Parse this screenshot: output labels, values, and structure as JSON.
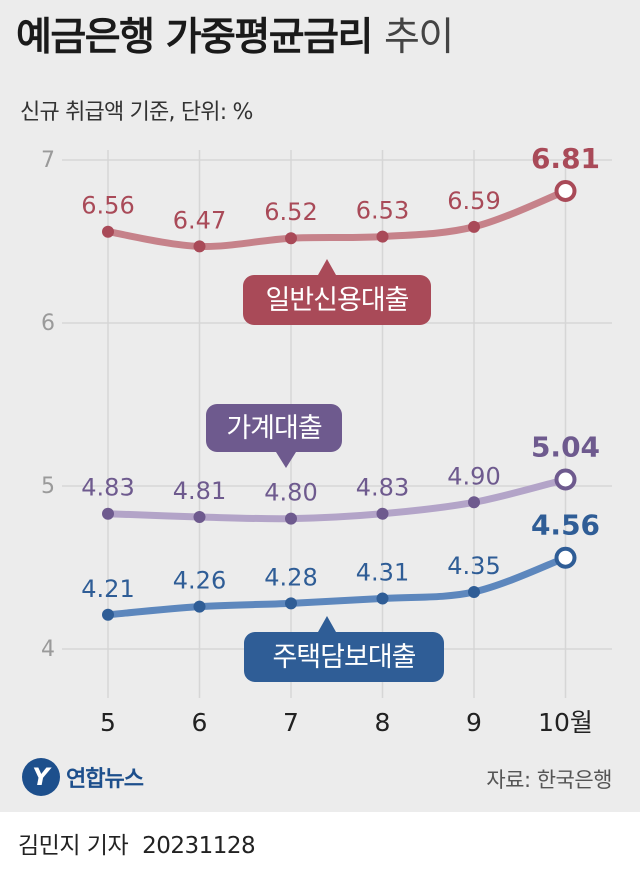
{
  "header": {
    "title": "예금은행 가중평균금리",
    "title_suffix": "추이",
    "subtitle": "신규 취급액 기준, 단위: %"
  },
  "chart_data": {
    "type": "line",
    "categories": [
      "5",
      "6",
      "7",
      "8",
      "9",
      "10월"
    ],
    "ylim": [
      3.8,
      7.2
    ],
    "yticks": [
      4,
      5,
      6,
      7
    ],
    "grid": true,
    "series": [
      {
        "name": "일반신용대출",
        "values": [
          6.56,
          6.47,
          6.52,
          6.53,
          6.59,
          6.81
        ],
        "labels": [
          "6.56",
          "6.47",
          "6.52",
          "6.53",
          "6.59",
          "6.81"
        ],
        "line_color": "#c6828a",
        "point_color": "#a94a58",
        "label_color": "#a94a58",
        "tag_color": "#a94a58"
      },
      {
        "name": "가계대출",
        "values": [
          4.83,
          4.81,
          4.8,
          4.83,
          4.9,
          5.04
        ],
        "labels": [
          "4.83",
          "4.81",
          "4.80",
          "4.83",
          "4.90",
          "5.04"
        ],
        "line_color": "#b3a4c8",
        "point_color": "#6e5a8e",
        "label_color": "#6e5a8e",
        "tag_color": "#6e5a8e"
      },
      {
        "name": "주택담보대출",
        "values": [
          4.21,
          4.26,
          4.28,
          4.31,
          4.35,
          4.56
        ],
        "labels": [
          "4.21",
          "4.26",
          "4.28",
          "4.31",
          "4.35",
          "4.56"
        ],
        "line_color": "#5d87bd",
        "point_color": "#2f5d96",
        "label_color": "#2f5d96",
        "tag_color": "#2f5d96"
      }
    ]
  },
  "footer": {
    "logo_text": "연합뉴스",
    "source": "자료: 한국은행",
    "reporter": "김민지 기자",
    "date": "20231128"
  }
}
